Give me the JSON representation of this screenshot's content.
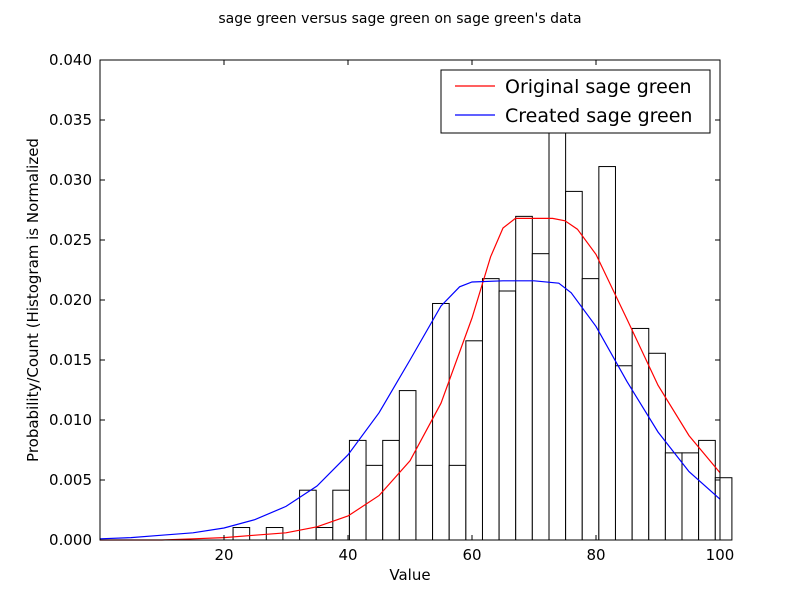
{
  "chart_data": {
    "type": "histogram",
    "title": "sage green versus sage green on sage green's data",
    "xlabel": "Value",
    "ylabel": "Probability/Count (Histogram is Normalized",
    "xlim": [
      0,
      100
    ],
    "ylim": [
      0,
      0.04
    ],
    "x_ticks": [
      20,
      40,
      60,
      80,
      100
    ],
    "y_ticks": [
      0.0,
      0.005,
      0.01,
      0.015,
      0.02,
      0.025,
      0.03,
      0.035,
      0.04
    ],
    "x_tick_labels": [
      "20",
      "40",
      "60",
      "80",
      "100"
    ],
    "y_tick_labels": [
      "0.000",
      "0.005",
      "0.010",
      "0.015",
      "0.020",
      "0.025",
      "0.030",
      "0.035",
      "0.040"
    ],
    "histogram": {
      "bin_edges": [
        0.0,
        2.68,
        5.36,
        8.05,
        10.73,
        13.41,
        16.09,
        18.78,
        21.46,
        24.14,
        26.82,
        29.5,
        32.19,
        34.87,
        37.55,
        40.23,
        42.91,
        45.6,
        48.28,
        50.96,
        53.64,
        56.32,
        59.01,
        61.69,
        64.37,
        67.05,
        69.73,
        72.42,
        75.1,
        77.78,
        80.46,
        83.14,
        85.83,
        88.51,
        91.19,
        93.87,
        96.55,
        99.24
      ],
      "values": [
        0,
        0,
        0,
        0,
        0,
        0,
        0,
        0,
        0.00104,
        0,
        0.00104,
        0,
        0.00415,
        0.00104,
        0.00415,
        0.0083,
        0.00622,
        0.0083,
        0.01245,
        0.00622,
        0.01971,
        0.00622,
        0.0166,
        0.02178,
        0.02075,
        0.02697,
        0.02386,
        0.03423,
        0.02905,
        0.02178,
        0.03112,
        0.01452,
        0.01763,
        0.01556,
        0.00726,
        0.00726,
        0.0083,
        0.00519
      ]
    },
    "series": [
      {
        "name": "Original sage green",
        "color": "#ff0000",
        "x": [
          0,
          5,
          10,
          15,
          20,
          25,
          30,
          35,
          40,
          45,
          50,
          55,
          60,
          63,
          65,
          67,
          70,
          73,
          75,
          77,
          80,
          85,
          90,
          95,
          100
        ],
        "y": [
          0.0,
          0.0,
          0.0,
          0.0001,
          0.0002,
          0.0004,
          0.0006,
          0.0011,
          0.002,
          0.0037,
          0.0066,
          0.0114,
          0.0185,
          0.0236,
          0.026,
          0.0268,
          0.0268,
          0.0268,
          0.0266,
          0.0259,
          0.0238,
          0.0184,
          0.0129,
          0.0087,
          0.0056
        ]
      },
      {
        "name": "Created sage green",
        "color": "#0000ff",
        "x": [
          0,
          5,
          10,
          15,
          20,
          25,
          30,
          35,
          40,
          45,
          50,
          55,
          58,
          60,
          65,
          70,
          74,
          76,
          80,
          85,
          90,
          95,
          100
        ],
        "y": [
          0.0001,
          0.0002,
          0.0004,
          0.0006,
          0.001,
          0.0017,
          0.0028,
          0.0045,
          0.0071,
          0.0106,
          0.015,
          0.0195,
          0.0211,
          0.0215,
          0.0216,
          0.0216,
          0.0214,
          0.0206,
          0.0178,
          0.0132,
          0.009,
          0.0057,
          0.0034
        ]
      }
    ],
    "legend": {
      "position": "top-right",
      "entries": [
        "Original sage green",
        "Created sage green"
      ]
    },
    "grid": false
  }
}
